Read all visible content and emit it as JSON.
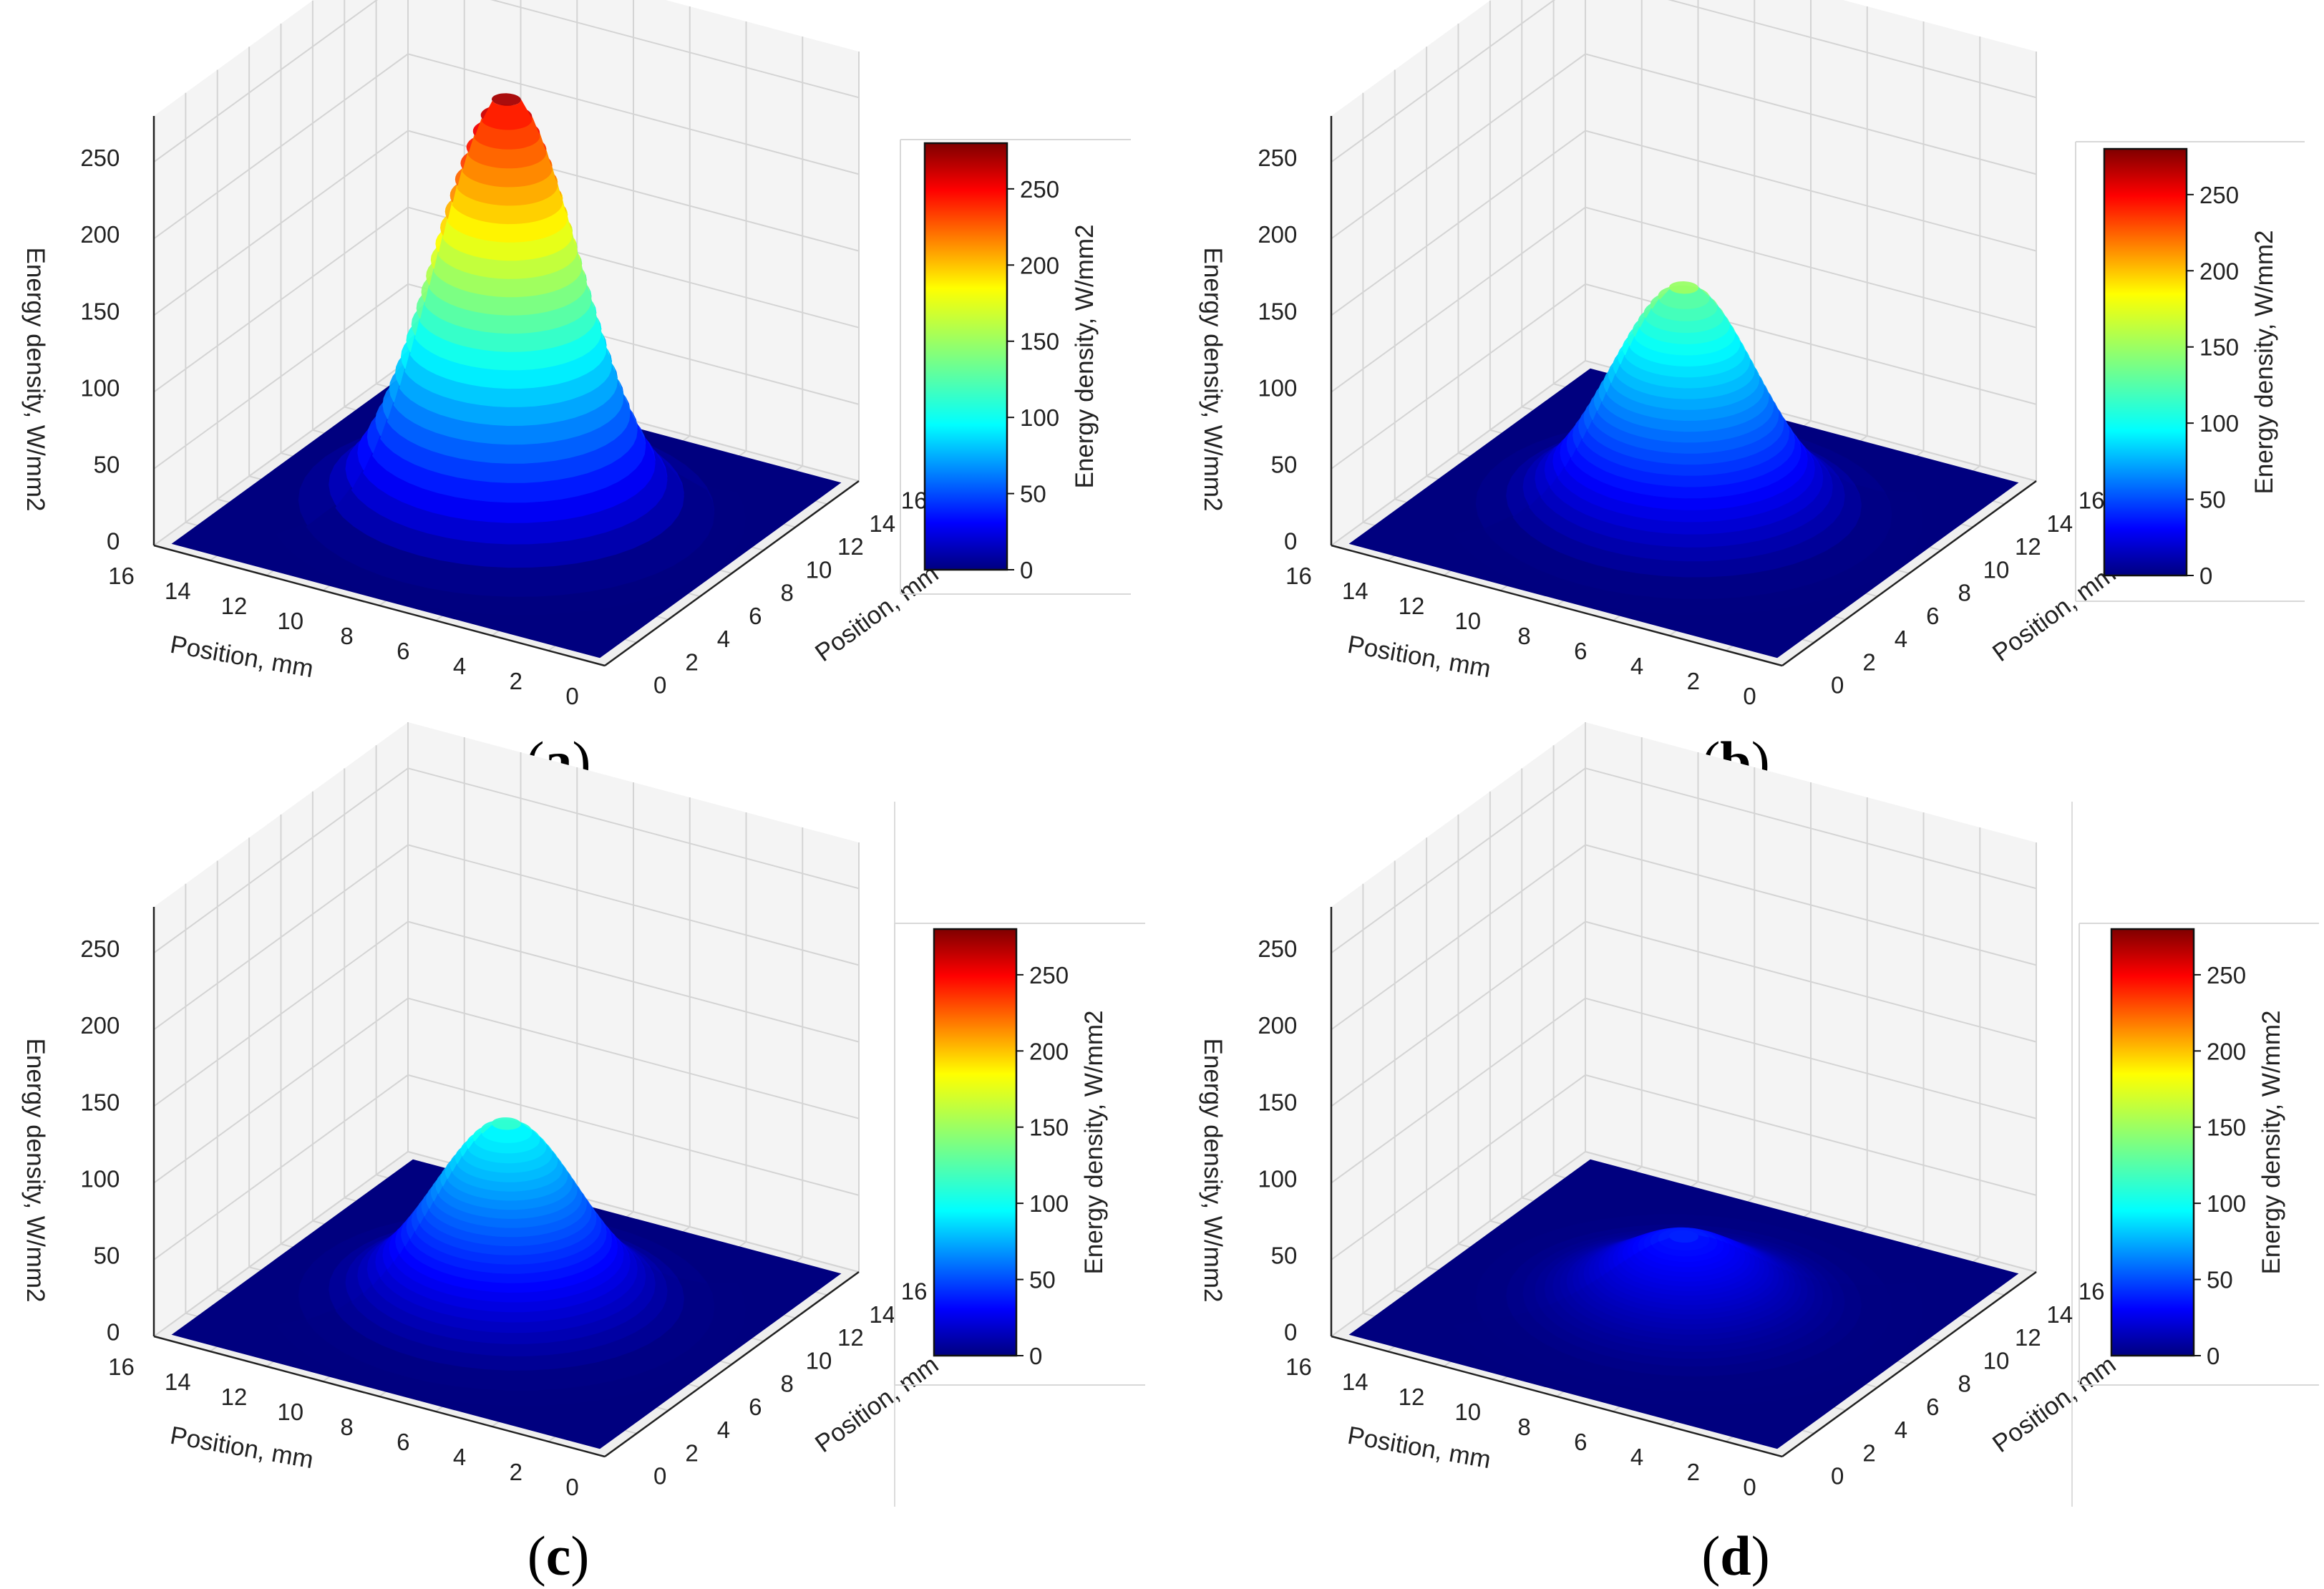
{
  "figure": {
    "description_note": "",
    "panels_count": 4
  },
  "chart_data": [
    {
      "type": "surface",
      "label": "(a)",
      "caption_letter": "a",
      "xlabel": "Position, mm",
      "ylabel": "Position, mm",
      "zlabel": "Energy density, W/mm2",
      "x_ticks": [
        "16",
        "14",
        "12",
        "10",
        "8",
        "6",
        "4",
        "2",
        "0"
      ],
      "y_ticks": [
        "0",
        "2",
        "4",
        "6",
        "8",
        "10",
        "12",
        "14",
        "16"
      ],
      "z_ticks": [
        "0",
        "50",
        "100",
        "150",
        "200",
        "250"
      ],
      "xlim": [
        0,
        16
      ],
      "ylim": [
        0,
        16
      ],
      "zlim": [
        0,
        280
      ],
      "peak_value": 275,
      "peak_position": [
        8,
        8
      ],
      "colorbar": {
        "label": "Energy density, W/mm2",
        "ticks": [
          "0",
          "50",
          "100",
          "150",
          "200",
          "250"
        ],
        "range": [
          0,
          280
        ],
        "colormap": "jet"
      }
    },
    {
      "type": "surface",
      "label": "(b)",
      "caption_letter": "b",
      "xlabel": "Position, mm",
      "ylabel": "Position, mm",
      "zlabel": "Energy density, W/mm2",
      "x_ticks": [
        "16",
        "14",
        "12",
        "10",
        "8",
        "6",
        "4",
        "2",
        "0"
      ],
      "y_ticks": [
        "0",
        "2",
        "4",
        "6",
        "8",
        "10",
        "12",
        "14",
        "16"
      ],
      "z_ticks": [
        "0",
        "50",
        "100",
        "150",
        "200",
        "250"
      ],
      "xlim": [
        0,
        16
      ],
      "ylim": [
        0,
        16
      ],
      "zlim": [
        0,
        280
      ],
      "peak_value": 150,
      "peak_position": [
        8,
        8
      ],
      "colorbar": {
        "label": "Energy density, W/mm2",
        "ticks": [
          "0",
          "50",
          "100",
          "150",
          "200",
          "250"
        ],
        "range": [
          0,
          280
        ],
        "colormap": "jet"
      }
    },
    {
      "type": "surface",
      "label": "(c)",
      "caption_letter": "c",
      "xlabel": "Position, mm",
      "ylabel": "Position, mm",
      "zlabel": "Energy density, W/mm2",
      "x_ticks": [
        "16",
        "14",
        "12",
        "10",
        "8",
        "6",
        "4",
        "2",
        "0"
      ],
      "y_ticks": [
        "0",
        "2",
        "4",
        "6",
        "8",
        "10",
        "12",
        "14",
        "16"
      ],
      "z_ticks": [
        "0",
        "50",
        "100",
        "150",
        "200",
        "250"
      ],
      "xlim": [
        0,
        16
      ],
      "ylim": [
        0,
        16
      ],
      "zlim": [
        0,
        280
      ],
      "peak_value": 120,
      "peak_position": [
        8,
        8
      ],
      "colorbar": {
        "label": "Energy density, W/mm2",
        "ticks": [
          "0",
          "50",
          "100",
          "150",
          "200",
          "250"
        ],
        "range": [
          0,
          280
        ],
        "colormap": "jet"
      }
    },
    {
      "type": "surface",
      "label": "(d)",
      "caption_letter": "d",
      "xlabel": "Position, mm",
      "ylabel": "Position, mm",
      "zlabel": "Energy density, W/mm2",
      "x_ticks": [
        "16",
        "14",
        "12",
        "10",
        "8",
        "6",
        "4",
        "2",
        "0"
      ],
      "y_ticks": [
        "0",
        "2",
        "4",
        "6",
        "8",
        "10",
        "12",
        "14",
        "16"
      ],
      "z_ticks": [
        "0",
        "50",
        "100",
        "150",
        "200",
        "250"
      ],
      "xlim": [
        0,
        16
      ],
      "ylim": [
        0,
        16
      ],
      "zlim": [
        0,
        280
      ],
      "peak_value": 45,
      "peak_position": [
        8,
        8
      ],
      "colorbar": {
        "label": "Energy density, W/mm2",
        "ticks": [
          "0",
          "50",
          "100",
          "150",
          "200",
          "250"
        ],
        "range": [
          0,
          280
        ],
        "colormap": "jet"
      }
    }
  ],
  "colors": {
    "pane_fill": "#f4f4f4",
    "grid": "#d4d4d4",
    "axis_line": "#222222",
    "base_surface": "#00007f"
  }
}
